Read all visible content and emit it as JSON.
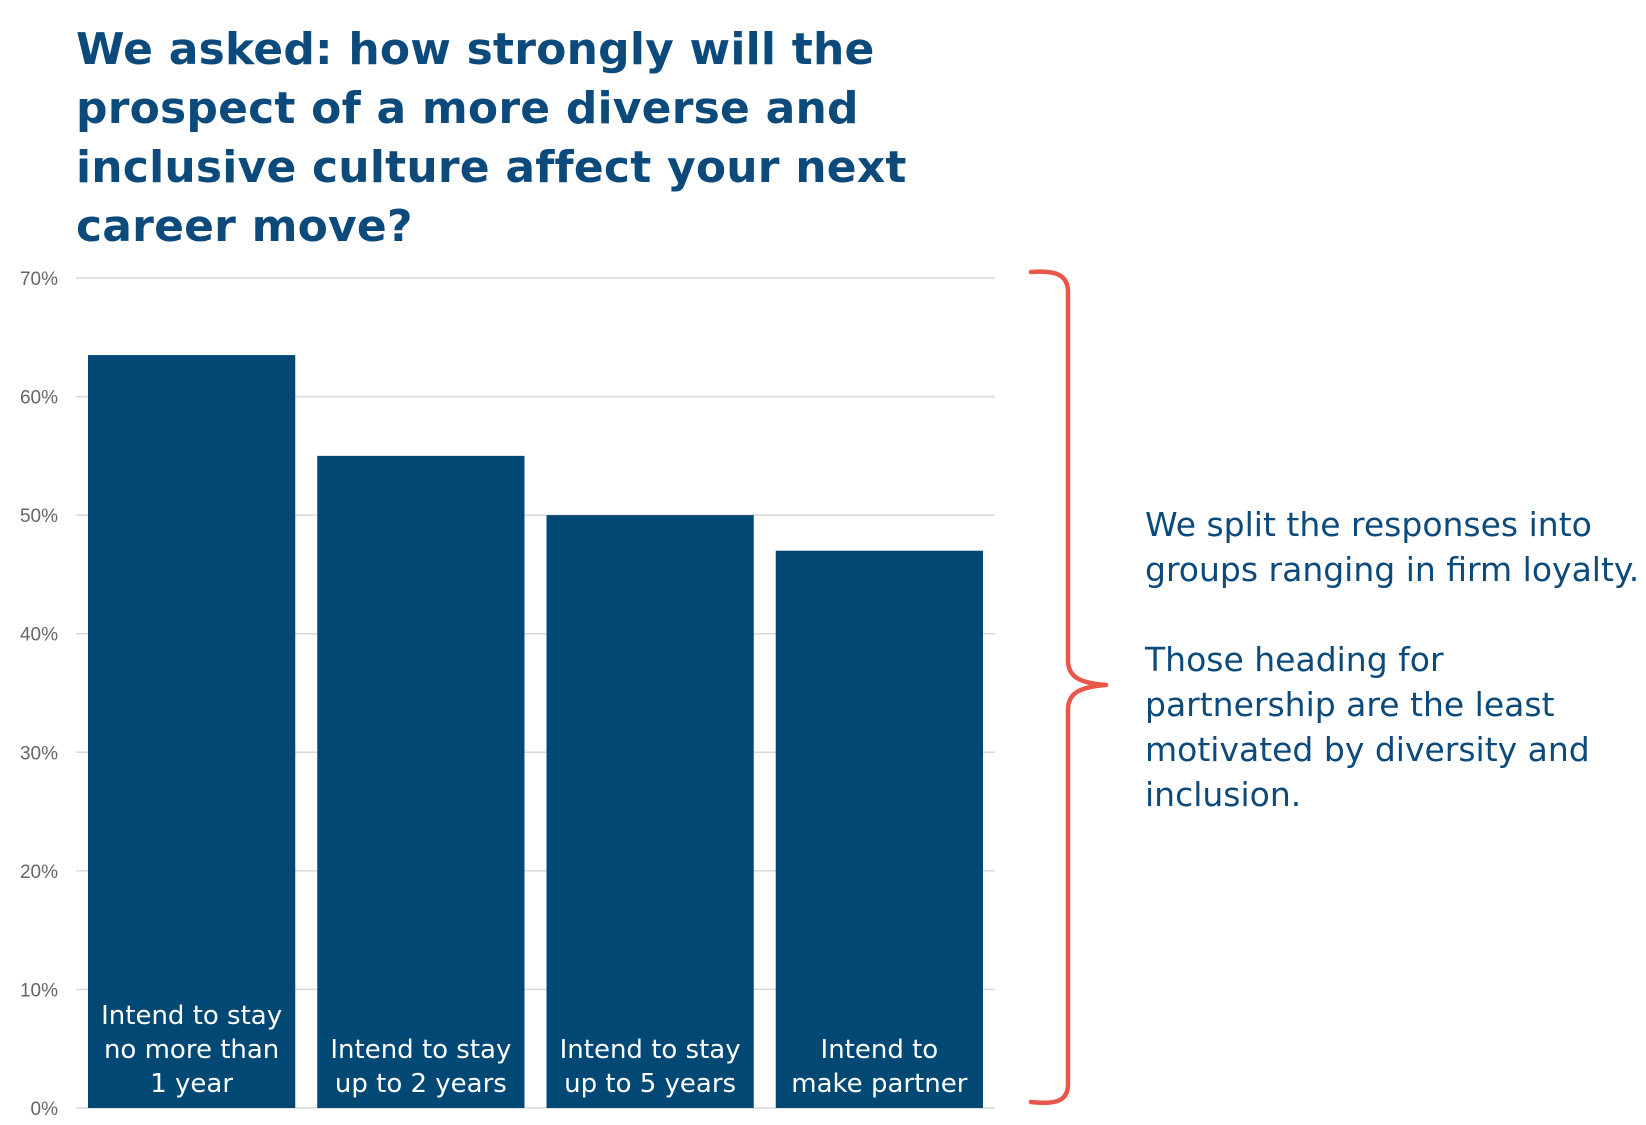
{
  "title": "We asked: how strongly will the prospect of a more diverse and inclusive culture affect your next career move?",
  "annotation": {
    "paragraph_1": "We split the responses into groups ranging in firm loyalty.",
    "paragraph_2": "Those heading for partnership are the least motivated by diversity and inclusion."
  },
  "colors": {
    "bar": "#024874",
    "title": "#0d4a7c",
    "grid": "#d9d9d9",
    "bracket": "#e8574a"
  },
  "chart_data": {
    "type": "bar",
    "categories": [
      [
        "Intend to stay",
        "no more than",
        "1 year"
      ],
      [
        "Intend to stay",
        "up to 2 years"
      ],
      [
        "Intend to stay",
        "up to 5 years"
      ],
      [
        "Intend to",
        "make partner"
      ]
    ],
    "values": [
      63.5,
      55,
      50,
      47
    ],
    "title": "We asked: how strongly will the prospect of a more diverse and inclusive culture affect your next career move?",
    "xlabel": "",
    "ylabel": "",
    "ylim": [
      0,
      70
    ],
    "yticks": [
      "0%",
      "10%",
      "20%",
      "30%",
      "40%",
      "50%",
      "60%",
      "70%"
    ],
    "grid": true,
    "legend": "none",
    "category_labels_position": "inside-bar-bottom"
  }
}
